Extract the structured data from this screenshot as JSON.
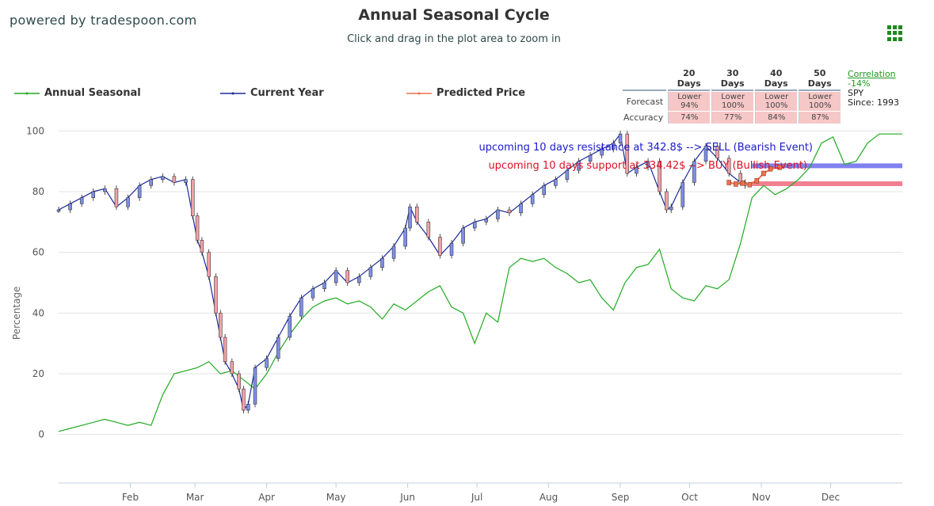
{
  "header": {
    "brand": "powered by tradespoon.com",
    "title": "Annual Seasonal Cycle",
    "subtitle": "Click and drag in the plot area to zoom in"
  },
  "legend": [
    {
      "label": "Annual Seasonal",
      "color": "#22aa22"
    },
    {
      "label": "Current Year",
      "color": "#1a2a9a"
    },
    {
      "label": "Predicted Price",
      "color": "#f07050"
    }
  ],
  "forecast_table": {
    "headers": [
      "20 Days",
      "30 Days",
      "40 Days",
      "50 Days"
    ],
    "forecast_label": "Forecast",
    "accuracy_label": "Accuracy",
    "forecast_dir": [
      "Lower",
      "Lower",
      "Lower",
      "Lower"
    ],
    "forecast_pct": [
      "94%",
      "100%",
      "100%",
      "100%"
    ],
    "accuracy": [
      "74%",
      "77%",
      "84%",
      "87%"
    ]
  },
  "correlation": {
    "label": "Correlation",
    "value": "-14%",
    "symbol": "SPY",
    "since": "Since: 1993"
  },
  "chart_data": {
    "type": "line",
    "ylabel": "Percentage",
    "ylim": [
      -16,
      104
    ],
    "yticks": [
      0,
      20,
      40,
      60,
      80,
      100
    ],
    "x_range": [
      0,
      365
    ],
    "x_tick_labels": [
      "Feb",
      "Mar",
      "Apr",
      "May",
      "Jun",
      "Jul",
      "Aug",
      "Sep",
      "Oct",
      "Nov",
      "Dec"
    ],
    "x_tick_days": [
      31,
      59,
      90,
      120,
      151,
      181,
      212,
      243,
      273,
      304,
      334
    ],
    "grid": true,
    "annotations": [
      {
        "text": "upcoming 10 days resistance at 342.8$ --> SELL (Bearish Event)",
        "color": "#1a1acc",
        "level": 88.5
      },
      {
        "text": "upcoming 10 days support at 334.42$ --> BUY (Bullish Event)",
        "color": "#dd1122",
        "level": 82.6
      }
    ],
    "resistance_level": 88.5,
    "support_level": 82.6,
    "series": [
      {
        "name": "Annual Seasonal",
        "color": "#22aa22",
        "x": [
          0,
          5,
          10,
          15,
          20,
          25,
          30,
          35,
          40,
          45,
          50,
          55,
          60,
          65,
          70,
          75,
          80,
          85,
          90,
          95,
          100,
          105,
          110,
          115,
          120,
          125,
          130,
          135,
          140,
          145,
          150,
          155,
          160,
          165,
          170,
          175,
          180,
          185,
          190,
          195,
          200,
          205,
          210,
          215,
          220,
          225,
          230,
          235,
          240,
          245,
          250,
          255,
          260,
          265,
          270,
          275,
          280,
          285,
          290,
          295,
          300,
          305,
          310,
          315,
          320,
          325,
          330,
          335,
          340,
          345,
          350,
          355,
          360,
          365
        ],
        "values": [
          1,
          2,
          3,
          4,
          5,
          4,
          3,
          4,
          3,
          13,
          20,
          21,
          22,
          24,
          20,
          21,
          18,
          15,
          20,
          27,
          33,
          38,
          42,
          44,
          45,
          43,
          44,
          42,
          38,
          43,
          41,
          44,
          47,
          49,
          42,
          40,
          30,
          40,
          37,
          55,
          58,
          57,
          58,
          55,
          53,
          50,
          51,
          45,
          41,
          50,
          55,
          56,
          61,
          48,
          45,
          44,
          49,
          48,
          51,
          63,
          78,
          82,
          79,
          81,
          84,
          88,
          96,
          98,
          89,
          90,
          96,
          99,
          99,
          99
        ]
      },
      {
        "name": "Current Year",
        "color": "#1a2a9a",
        "x": [
          0,
          5,
          10,
          15,
          20,
          25,
          30,
          35,
          40,
          45,
          50,
          55,
          58,
          60,
          62,
          65,
          68,
          70,
          72,
          75,
          78,
          80,
          82,
          85,
          90,
          95,
          100,
          105,
          110,
          115,
          120,
          125,
          130,
          135,
          140,
          145,
          150,
          152,
          155,
          160,
          165,
          170,
          175,
          180,
          185,
          190,
          195,
          200,
          205,
          210,
          215,
          220,
          225,
          230,
          235,
          240,
          243,
          246,
          250,
          255,
          260,
          263,
          265,
          270,
          275,
          280,
          285,
          290,
          295,
          297
        ],
        "values": [
          74,
          76,
          78,
          80,
          81,
          75,
          78,
          82,
          84,
          85,
          83,
          84,
          72,
          64,
          60,
          52,
          40,
          32,
          24,
          20,
          15,
          8,
          10,
          22,
          25,
          32,
          39,
          45,
          48,
          50,
          54,
          50,
          52,
          55,
          58,
          62,
          68,
          75,
          70,
          65,
          59,
          63,
          68,
          70,
          71,
          74,
          73,
          76,
          79,
          82,
          84,
          87,
          90,
          92,
          94,
          96,
          99,
          86,
          88,
          90,
          80,
          74,
          75,
          83,
          90,
          95,
          91,
          86,
          83,
          82
        ]
      },
      {
        "name": "Predicted Price",
        "color": "#f07050",
        "x": [
          290,
          293,
          296,
          299,
          302,
          305,
          308,
          312
        ],
        "values": [
          83,
          82.5,
          82.8,
          82.3,
          83.6,
          86,
          87.5,
          88
        ]
      }
    ]
  }
}
